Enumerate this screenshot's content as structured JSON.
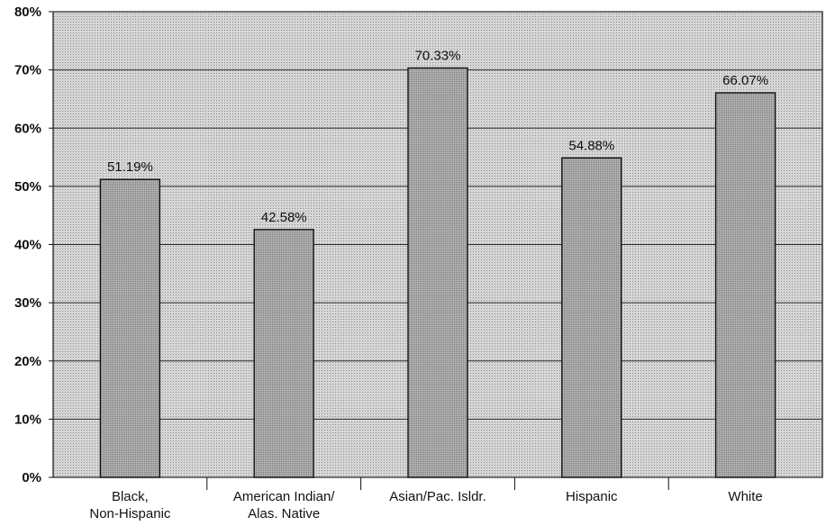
{
  "chart_data": {
    "type": "bar",
    "categories": [
      [
        "Black,",
        "Non-Hispanic"
      ],
      [
        "American Indian/",
        "Alas. Native"
      ],
      [
        "Asian/Pac. Isldr."
      ],
      [
        "Hispanic"
      ],
      [
        "White"
      ]
    ],
    "values": [
      51.19,
      42.58,
      70.33,
      54.88,
      66.07
    ],
    "data_labels": [
      "51.19%",
      "42.58%",
      "70.33%",
      "54.88%",
      "66.07%"
    ],
    "ylim": [
      0,
      80
    ],
    "yticks": [
      0,
      10,
      20,
      30,
      40,
      50,
      60,
      70,
      80
    ],
    "ytick_labels": [
      "0%",
      "10%",
      "20%",
      "30%",
      "40%",
      "50%",
      "60%",
      "70%",
      "80%"
    ],
    "grid": true,
    "legend": "none",
    "colors": {
      "plot_background": "#d2d2d2",
      "bar_fill": "#a6a6a6",
      "bar_stroke": "#111111",
      "gridline": "#2a2a2a"
    }
  }
}
